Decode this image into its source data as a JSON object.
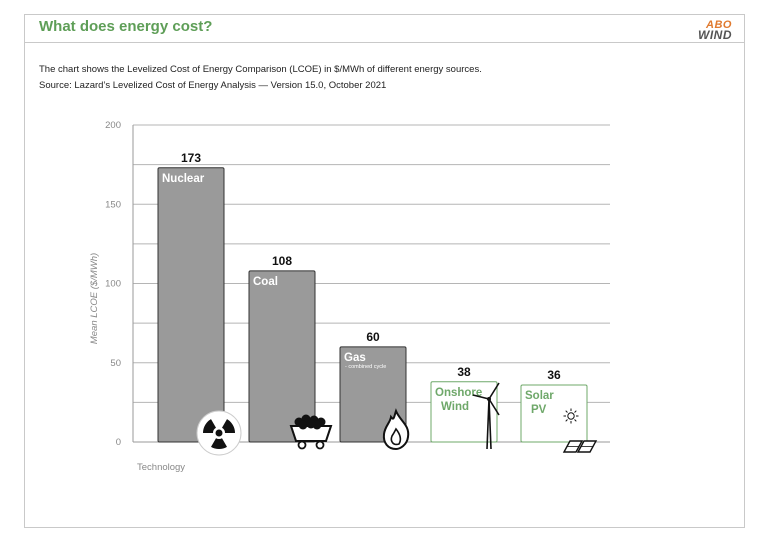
{
  "header": {
    "title": "What does energy cost?",
    "logo_top": "ABO",
    "logo_bottom": "WIND"
  },
  "description": "The chart shows the Levelized Cost of Energy Comparison (LCOE) in $/MWh of different energy sources.",
  "source": "Source: Lazard’s Levelized Cost of Energy Analysis — Version 15.0, October 2021",
  "colors": {
    "title": "#5e9e57",
    "bar_gray": "#9a9a9a",
    "bar_green_stroke": "#6fa86a",
    "bar_green_fill": "#ffffff",
    "grid": "#b5b5b5"
  },
  "chart_data": {
    "type": "bar",
    "categories": [
      "Nuclear",
      "Coal",
      "Gas",
      "Onshore Wind",
      "Solar PV"
    ],
    "values": [
      173,
      108,
      60,
      38,
      36
    ],
    "sublabels": [
      "",
      "",
      "- combined cycle",
      "",
      ""
    ],
    "icons": [
      "radiation-icon",
      "coal-cart-icon",
      "flame-icon",
      "wind-turbine-icon",
      "solar-panel-icon"
    ],
    "styles": [
      "gray",
      "gray",
      "gray",
      "green",
      "green"
    ],
    "ylabel": "Mean LCOE ($/MWh)",
    "xlabel": "Technology",
    "ylim": [
      0,
      200
    ],
    "yticks": [
      0,
      50,
      100,
      150,
      200
    ],
    "grid": true
  }
}
